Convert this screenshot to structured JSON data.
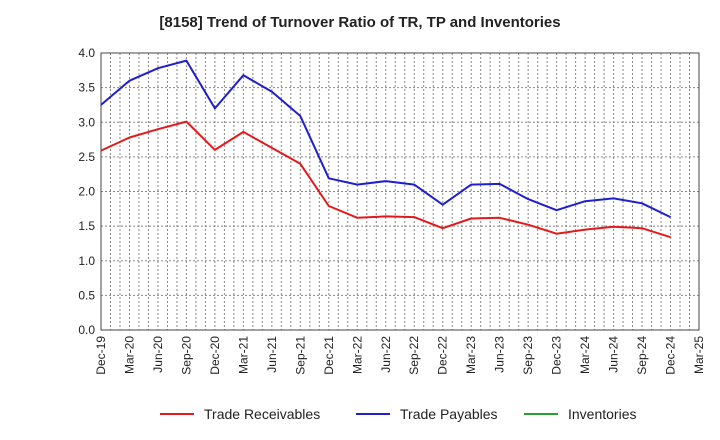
{
  "chart_data": {
    "type": "line",
    "title": "[8158]  Trend of Turnover Ratio of TR, TP and Inventories",
    "xlabel": "",
    "ylabel": "",
    "ylim": [
      0.0,
      4.0
    ],
    "y_ticks": [
      "0.0",
      "0.5",
      "1.0",
      "1.5",
      "2.0",
      "2.5",
      "3.0",
      "3.5",
      "4.0"
    ],
    "x_tick_labels": [
      "Dec-19",
      "Mar-20",
      "Jun-20",
      "Sep-20",
      "Dec-20",
      "Mar-21",
      "Jun-21",
      "Sep-21",
      "Dec-21",
      "Mar-22",
      "Jun-22",
      "Sep-22",
      "Dec-22",
      "Mar-23",
      "Jun-23",
      "Sep-23",
      "Dec-23",
      "Mar-24",
      "Jun-24",
      "Sep-24",
      "Dec-24",
      "Mar-25"
    ],
    "grid": true,
    "legend_position": "bottom",
    "series": [
      {
        "name": "Trade Receivables",
        "color": "#e31a1c",
        "values": [
          2.59,
          2.78,
          2.9,
          3.01,
          2.6,
          2.86,
          2.63,
          2.4,
          1.79,
          1.62,
          1.64,
          1.63,
          1.47,
          1.61,
          1.62,
          1.52,
          1.39,
          1.45,
          1.49,
          1.47,
          1.34,
          null
        ]
      },
      {
        "name": "Trade Payables",
        "color": "#1f1fcf",
        "values": [
          3.25,
          3.6,
          3.78,
          3.89,
          3.2,
          3.68,
          3.44,
          3.09,
          2.19,
          2.1,
          2.15,
          2.1,
          1.81,
          2.1,
          2.11,
          1.89,
          1.73,
          1.86,
          1.9,
          1.83,
          1.63,
          null
        ]
      },
      {
        "name": "Inventories",
        "color": "#2ca02c",
        "values": [
          null,
          null,
          null,
          null,
          null,
          null,
          null,
          null,
          null,
          null,
          null,
          null,
          null,
          null,
          null,
          null,
          null,
          null,
          null,
          null,
          null,
          null
        ]
      }
    ]
  }
}
